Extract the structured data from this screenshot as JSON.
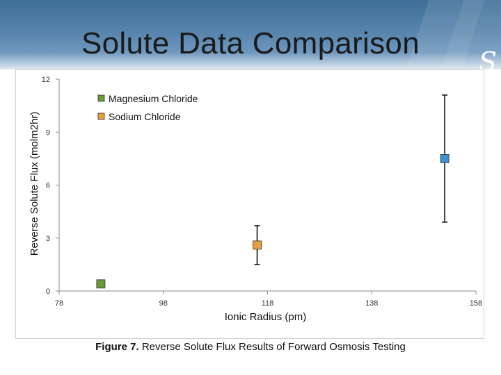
{
  "slide": {
    "title": "Solute Data Comparison",
    "caption_prefix": "Figure 7.",
    "caption_text": " Reverse Solute Flux Results of Forward Osmosis Testing",
    "logo_glyph": "S"
  },
  "chart_data": {
    "type": "scatter",
    "xlabel": "Ionic Radius (pm)",
    "ylabel": "Reverse Solute Flux (molm2hr)",
    "xlim": [
      78,
      158
    ],
    "ylim": [
      0,
      12
    ],
    "x_ticks": [
      78,
      98,
      118,
      138,
      158
    ],
    "y_ticks": [
      0,
      3,
      6,
      9,
      12
    ],
    "grid": false,
    "legend_position": "top-center",
    "series": [
      {
        "name": "Magnesium Chloride",
        "color": "#6a9a3a",
        "points": [
          {
            "x": 86,
            "y": 0.4,
            "err_low": null,
            "err_high": null
          }
        ]
      },
      {
        "name": "Sodium Chloride",
        "color": "#e8a13a",
        "points": [
          {
            "x": 116,
            "y": 2.6,
            "err_low": 1.5,
            "err_high": 3.7
          }
        ]
      },
      {
        "name": "",
        "color": "#3f8fd8",
        "points": [
          {
            "x": 152,
            "y": 7.5,
            "err_low": 3.9,
            "err_high": 11.1
          }
        ]
      }
    ]
  }
}
